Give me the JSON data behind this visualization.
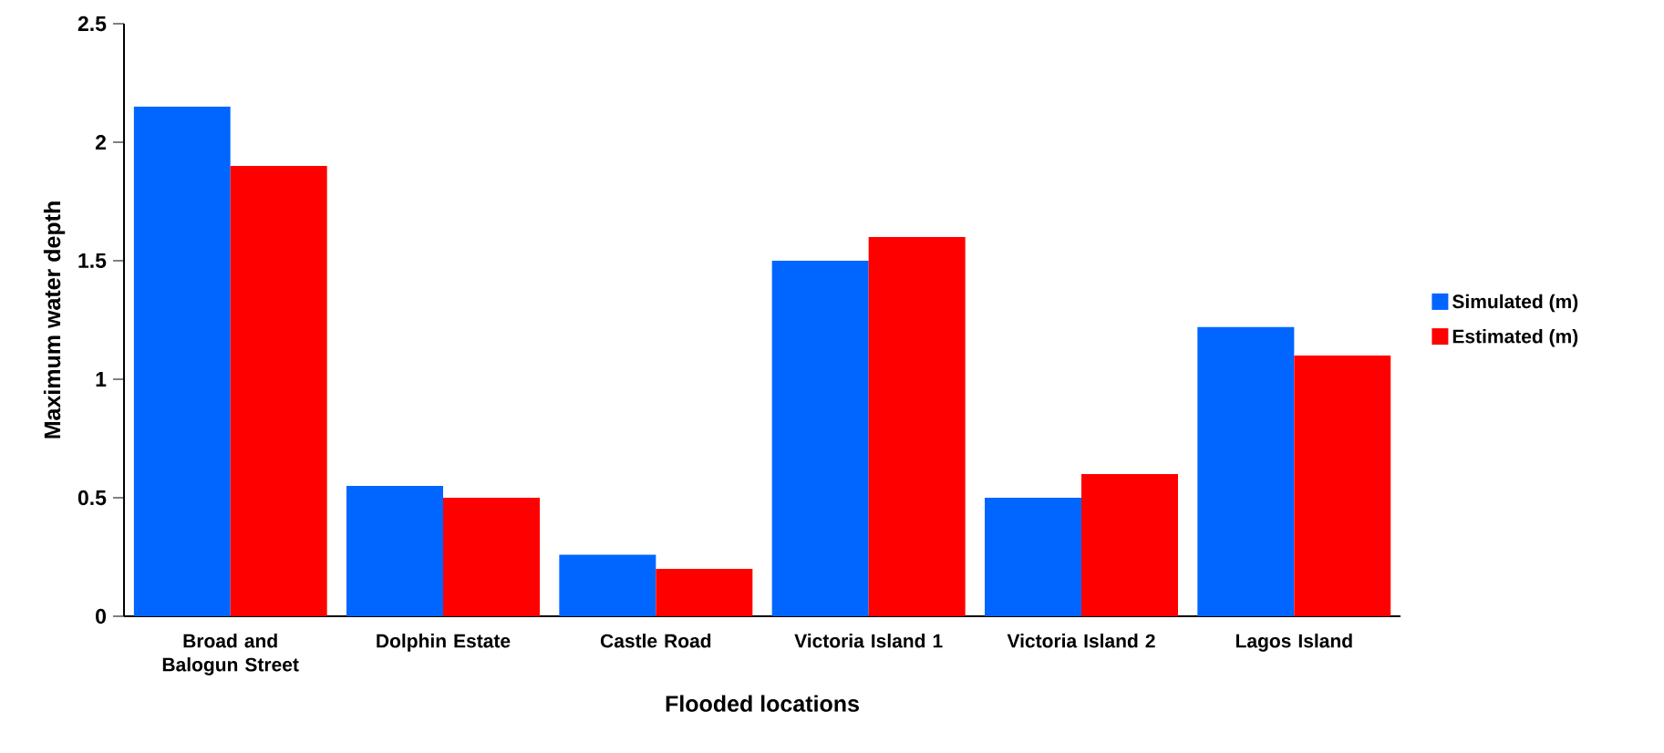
{
  "chart_data": {
    "type": "bar",
    "xlabel": "Flooded locations",
    "ylabel": "Maximum water depth",
    "categories": [
      "Broad and Balogun Street",
      "Dolphin Estate",
      "Castle Road",
      "Victoria Island 1",
      "Victoria Island 2",
      "Lagos Island"
    ],
    "series": [
      {
        "name": "Simulated (m)",
        "color": "#0066ff",
        "values": [
          2.15,
          0.55,
          0.26,
          1.5,
          0.5,
          1.22
        ]
      },
      {
        "name": "Estimated (m)",
        "color": "#ff0000",
        "values": [
          1.9,
          0.5,
          0.2,
          1.6,
          0.6,
          1.1
        ]
      }
    ],
    "ylim": [
      0,
      2.5
    ],
    "yticks": [
      0,
      0.5,
      1,
      1.5,
      2,
      2.5
    ],
    "grid": false,
    "legend": "right"
  }
}
